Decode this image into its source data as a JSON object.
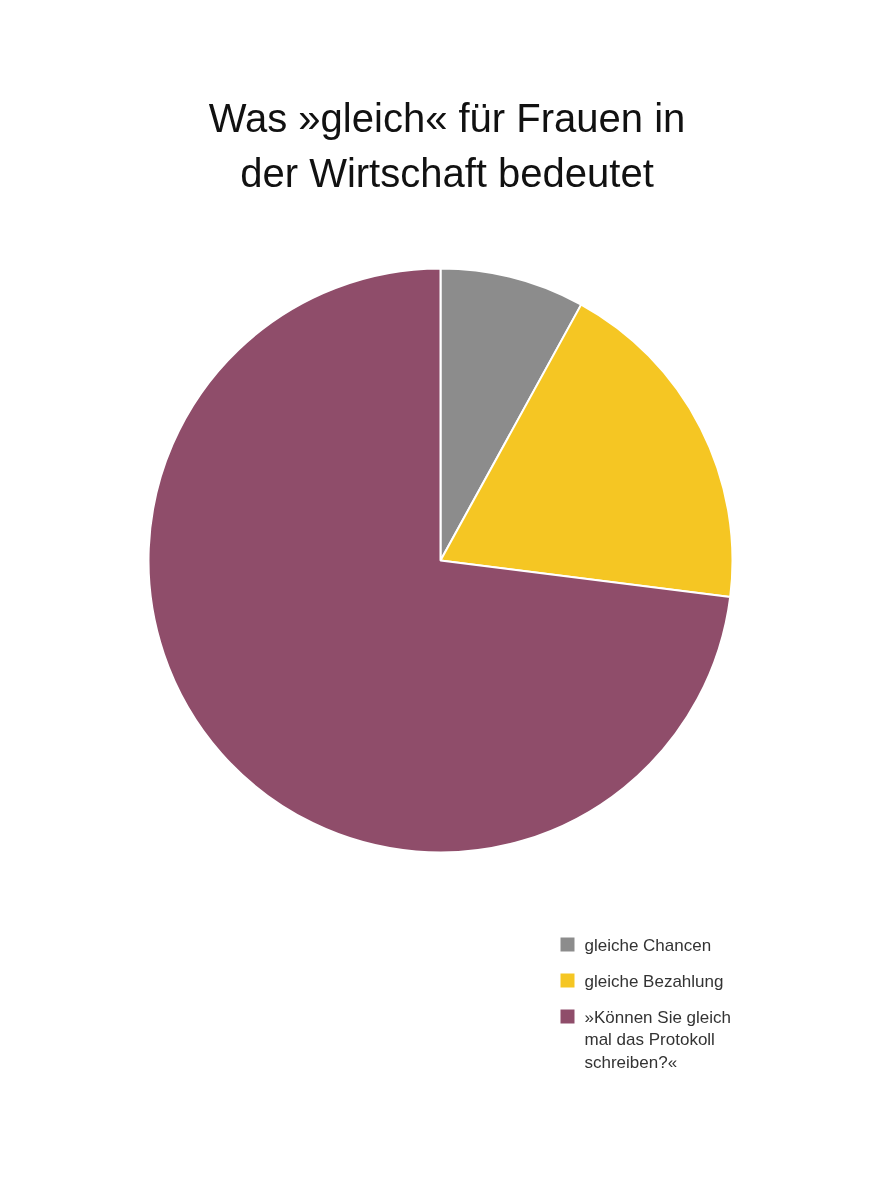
{
  "chart_data": {
    "type": "pie",
    "title": "Was »gleich« für Frauen in der Wirtschaft bedeutet",
    "categories": [
      "gleiche Chancen",
      "gleiche Bezahlung",
      "»Können Sie gleich mal das Protokoll schreiben?«"
    ],
    "values": [
      8,
      19,
      73
    ],
    "colors": [
      "#8c8c8c",
      "#f5c623",
      "#8f4d6a"
    ],
    "legend": "bottom right"
  }
}
